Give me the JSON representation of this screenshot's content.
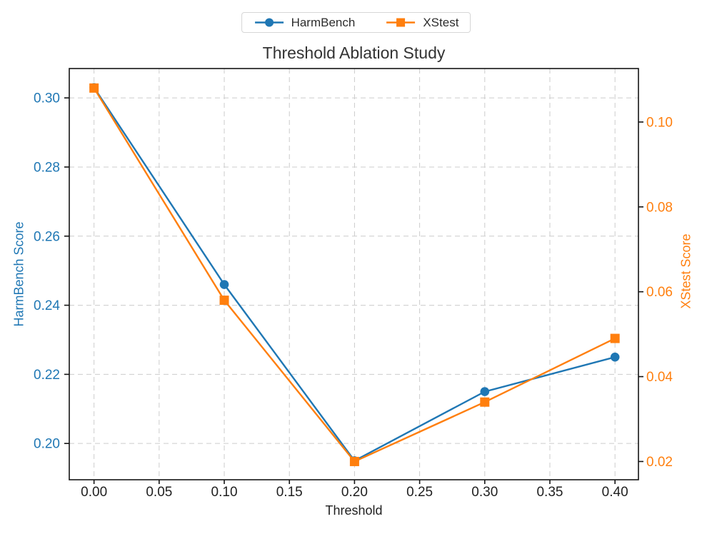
{
  "chart_data": {
    "type": "line",
    "title": "Threshold Ablation Study",
    "grid": true,
    "legend_position": "top-center-outside",
    "background": "#ffffff",
    "grid_color": "#cccccc",
    "spine_color": "#141414",
    "x": [
      0.0,
      0.1,
      0.2,
      0.3,
      0.4
    ],
    "series": [
      {
        "name": "HarmBench",
        "axis": "left",
        "color": "#1f77b4",
        "marker": "circle",
        "values": [
          0.303,
          0.246,
          0.195,
          0.215,
          0.225
        ]
      },
      {
        "name": "XStest",
        "axis": "right",
        "color": "#ff7f0e",
        "marker": "square",
        "values": [
          0.108,
          0.058,
          0.02,
          0.034,
          0.049
        ]
      }
    ],
    "x_axis": {
      "label": "Threshold",
      "ticks": [
        0.0,
        0.05,
        0.1,
        0.15,
        0.2,
        0.25,
        0.3,
        0.35,
        0.4
      ],
      "range": [
        -0.019,
        0.418
      ],
      "tick_color": "#1f1f1f"
    },
    "left_axis": {
      "label": "HarmBench Score",
      "color": "#1f77b4",
      "ticks": [
        0.2,
        0.22,
        0.24,
        0.26,
        0.28,
        0.3
      ],
      "range": [
        0.1895,
        0.3085
      ]
    },
    "right_axis": {
      "label": "XStest Score",
      "color": "#ff7f0e",
      "ticks": [
        0.02,
        0.04,
        0.06,
        0.08,
        0.1
      ],
      "range": [
        0.0157,
        0.1126
      ]
    }
  }
}
